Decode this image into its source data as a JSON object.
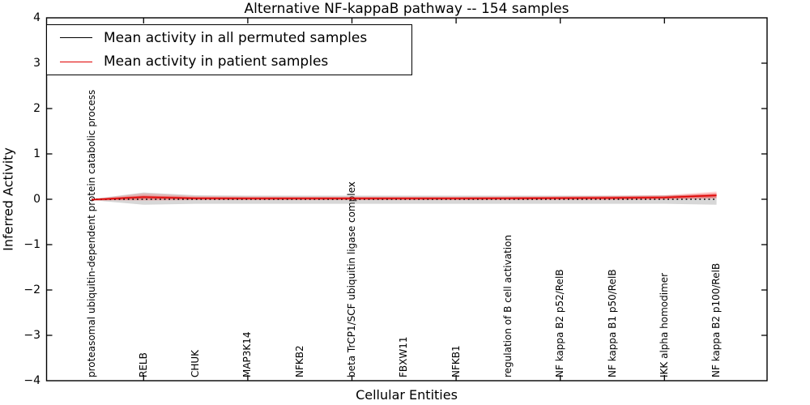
{
  "chart_data": {
    "type": "line",
    "title": "Alternative NF-kappaB pathway -- 154 samples",
    "xlabel": "Cellular Entities",
    "ylabel": "Inferred Activity",
    "ylim": [
      -4,
      4
    ],
    "yticks": [
      "4",
      "3",
      "2",
      "1",
      "0",
      "−1",
      "−2",
      "−3",
      "−4"
    ],
    "grid": false,
    "legend_position": "upper left",
    "categories": [
      "proteasomal ubiquitin-dependent protein catabolic process",
      "RELB",
      "CHUK",
      "MAP3K14",
      "NFKB2",
      "beta TrCP1/SCF ubiquitin ligase complex",
      "FBXW11",
      "NFKB1",
      "regulation of B cell activation",
      "NF kappa B2 p52/RelB",
      "NF kappa B1 p50/RelB",
      "IKK alpha homodimer",
      "NF kappa B2 p100/RelB"
    ],
    "series": [
      {
        "name": "Mean activity in all permuted samples",
        "color": "#000000",
        "style": "dotted",
        "values": [
          0,
          0,
          0,
          0,
          0,
          0,
          0,
          0,
          0,
          0,
          0,
          0,
          0
        ],
        "band_upper": [
          0.005,
          0.15,
          0.09,
          0.08,
          0.08,
          0.08,
          0.08,
          0.08,
          0.08,
          0.08,
          0.08,
          0.09,
          0.1
        ],
        "band_lower": [
          -0.02,
          -0.12,
          -0.1,
          -0.1,
          -0.1,
          -0.1,
          -0.1,
          -0.1,
          -0.1,
          -0.1,
          -0.1,
          -0.1,
          -0.12
        ],
        "band_color": "rgba(110,110,110,0.28)"
      },
      {
        "name": "Mean activity in patient samples",
        "color": "#e00000",
        "style": "solid",
        "values": [
          -0.01,
          0.05,
          0.02,
          0.018,
          0.018,
          0.018,
          0.018,
          0.018,
          0.02,
          0.025,
          0.03,
          0.04,
          0.085
        ],
        "band_upper": [
          0.0,
          0.13,
          0.07,
          0.06,
          0.055,
          0.055,
          0.055,
          0.055,
          0.06,
          0.065,
          0.075,
          0.09,
          0.17
        ],
        "band_lower": [
          -0.02,
          -0.03,
          -0.02,
          -0.02,
          -0.02,
          -0.02,
          -0.02,
          -0.02,
          -0.02,
          -0.02,
          -0.02,
          -0.01,
          0.01
        ],
        "band_color": "rgba(255,70,70,0.25)",
        "inner_band_upper": [
          0.01,
          0.08,
          0.05,
          0.045,
          0.045,
          0.045,
          0.045,
          0.045,
          0.05,
          0.055,
          0.06,
          0.07,
          0.13
        ],
        "inner_band_lower": [
          -0.03,
          0.0,
          -0.005,
          -0.008,
          -0.008,
          -0.008,
          -0.008,
          -0.008,
          -0.005,
          0.0,
          0.0,
          0.01,
          0.04
        ],
        "inner_band_color": "rgba(235,30,30,0.45)"
      }
    ]
  }
}
